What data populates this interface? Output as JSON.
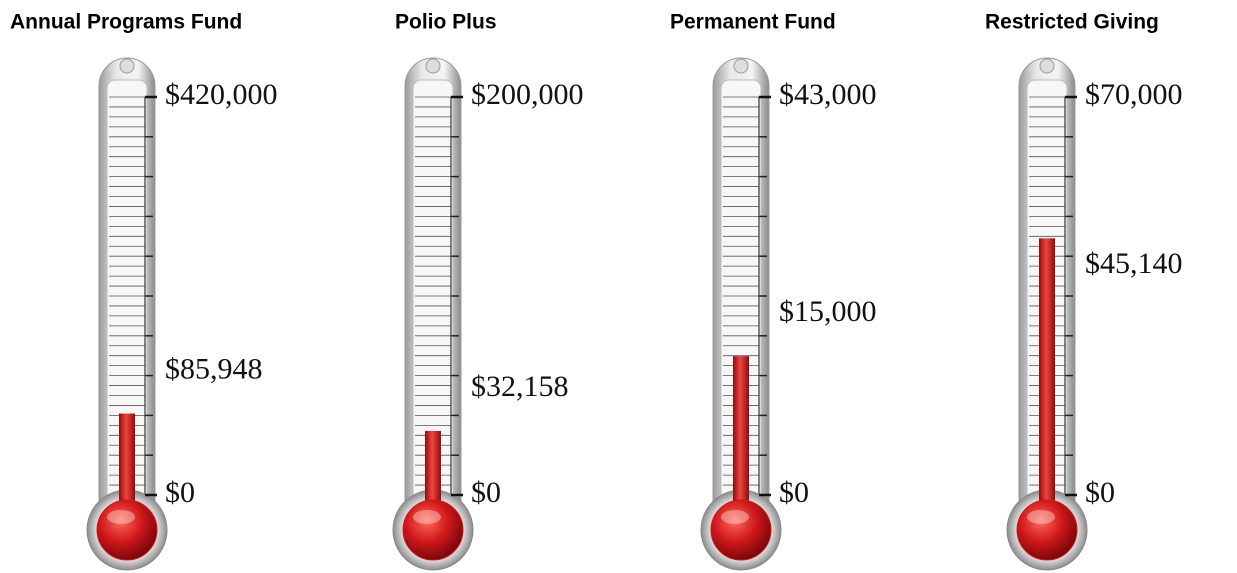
{
  "chart_data": [
    {
      "type": "thermometer",
      "title": "Annual Programs Fund",
      "values": [
        85948
      ],
      "value_labels": [
        "$85,948"
      ],
      "color": "#d0181b",
      "ylim": [
        0,
        420000
      ],
      "yticks": [
        {
          "value": 0,
          "label": "$0"
        },
        {
          "value": 420000,
          "label": "$420,000"
        }
      ]
    },
    {
      "type": "thermometer",
      "title": "Polio Plus",
      "values": [
        32158
      ],
      "value_labels": [
        "$32,158"
      ],
      "color": "#d0181b",
      "ylim": [
        0,
        200000
      ],
      "yticks": [
        {
          "value": 0,
          "label": "$0"
        },
        {
          "value": 200000,
          "label": "$200,000"
        }
      ]
    },
    {
      "type": "thermometer",
      "title": "Permanent Fund",
      "values": [
        15000
      ],
      "value_labels": [
        "$15,000"
      ],
      "color": "#d0181b",
      "ylim": [
        0,
        43000
      ],
      "yticks": [
        {
          "value": 0,
          "label": "$0"
        },
        {
          "value": 43000,
          "label": "$43,000"
        }
      ]
    },
    {
      "type": "thermometer",
      "title": "Restricted Giving",
      "values": [
        45140
      ],
      "value_labels": [
        "$45,140"
      ],
      "color": "#d0181b",
      "ylim": [
        0,
        70000
      ],
      "yticks": [
        {
          "value": 0,
          "label": "$0"
        },
        {
          "value": 70000,
          "label": "$70,000"
        }
      ]
    }
  ]
}
